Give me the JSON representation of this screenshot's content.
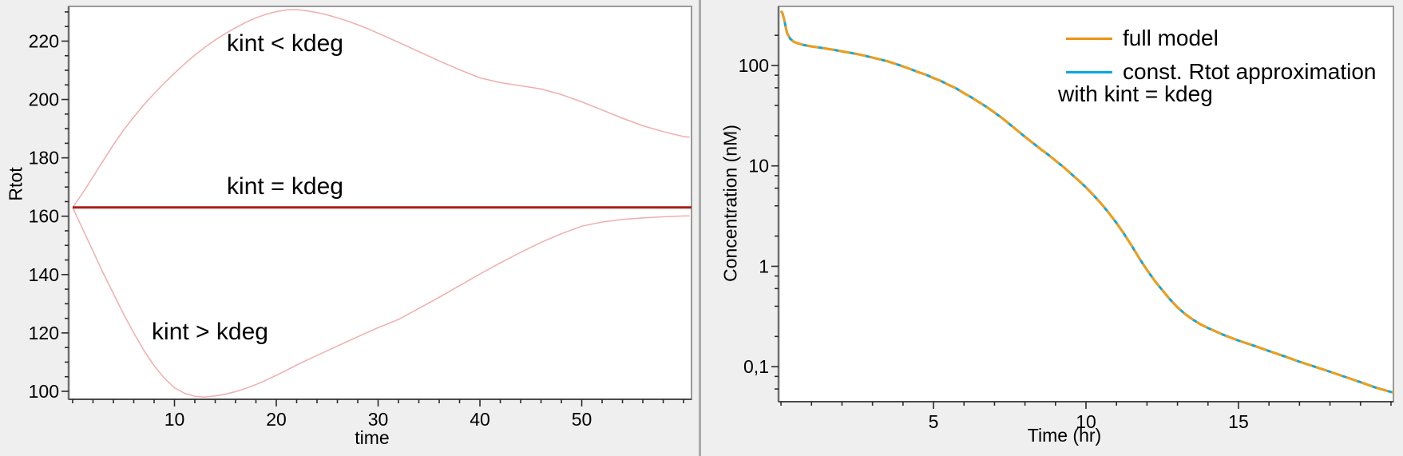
{
  "chart_data": [
    {
      "type": "line",
      "title": "",
      "xlabel": "time",
      "ylabel": "Rtot",
      "xlim": [
        -0.39,
        60.78
      ],
      "ylim": [
        97.26,
        231.9
      ],
      "ylog": false,
      "grid": false,
      "x_major_ticks": [
        10,
        20,
        30,
        40,
        50
      ],
      "x_minor_step": 2,
      "y_major_ticks": [
        {
          "v": 100,
          "label": "100"
        },
        {
          "v": 120,
          "label": "120"
        },
        {
          "v": 140,
          "label": "140"
        },
        {
          "v": 160,
          "label": "160"
        },
        {
          "v": 180,
          "label": "180"
        },
        {
          "v": 200,
          "label": "200"
        },
        {
          "v": 220,
          "label": "220"
        }
      ],
      "y_minor_step": 5,
      "annotations": [
        {
          "text": "kint < kdeg",
          "x": 20.9,
          "y": 218.5
        },
        {
          "text": "kint = kdeg",
          "x": 20.9,
          "y": 169.5
        },
        {
          "text": "kint > kdeg",
          "x": 13.5,
          "y": 120
        }
      ],
      "series": [
        {
          "name": "kint < kdeg",
          "color": "#efaeae",
          "width": 1.5,
          "dash": null,
          "points": [
            [
              0,
              163
            ],
            [
              1,
              168
            ],
            [
              2,
              173.5
            ],
            [
              3,
              179
            ],
            [
              4,
              184.5
            ],
            [
              5,
              189.5
            ],
            [
              6,
              194
            ],
            [
              7,
              198.2
            ],
            [
              8,
              202
            ],
            [
              9,
              205.6
            ],
            [
              10,
              209
            ],
            [
              11,
              212.2
            ],
            [
              12,
              215.2
            ],
            [
              13,
              217.9
            ],
            [
              14,
              220.4
            ],
            [
              15,
              222.6
            ],
            [
              16,
              224.6
            ],
            [
              17,
              226.4
            ],
            [
              18,
              228
            ],
            [
              19,
              229.2
            ],
            [
              20,
              230.1
            ],
            [
              21,
              230.7
            ],
            [
              22,
              230.8
            ],
            [
              23,
              230.4
            ],
            [
              24,
              229.8
            ],
            [
              25,
              229
            ],
            [
              26,
              228
            ],
            [
              27,
              226.9
            ],
            [
              28,
              225.6
            ],
            [
              29,
              224.2
            ],
            [
              30,
              222.7
            ],
            [
              32,
              219.6
            ],
            [
              34,
              216.4
            ],
            [
              36,
              213.2
            ],
            [
              38,
              210.2
            ],
            [
              40,
              207.4
            ],
            [
              42,
              205.8
            ],
            [
              44,
              204.7
            ],
            [
              46,
              203.6
            ],
            [
              48,
              201.7
            ],
            [
              50,
              199.2
            ],
            [
              52,
              196.4
            ],
            [
              54,
              193.6
            ],
            [
              56,
              191
            ],
            [
              58,
              189
            ],
            [
              60,
              187.3
            ],
            [
              60.6,
              187.1
            ]
          ]
        },
        {
          "name": "kint > kdeg",
          "color": "#efaeae",
          "width": 1.5,
          "dash": null,
          "points": [
            [
              0,
              163
            ],
            [
              1,
              155.5
            ],
            [
              2,
              148
            ],
            [
              3,
              140.5
            ],
            [
              4,
              133.5
            ],
            [
              5,
              126.5
            ],
            [
              6,
              120
            ],
            [
              7,
              114
            ],
            [
              8,
              108.8
            ],
            [
              9,
              104.5
            ],
            [
              10,
              101.2
            ],
            [
              11,
              99.3
            ],
            [
              12,
              98.3
            ],
            [
              13,
              98
            ],
            [
              14,
              98.4
            ],
            [
              15,
              99
            ],
            [
              16,
              99.9
            ],
            [
              17,
              101
            ],
            [
              18,
              102.3
            ],
            [
              19,
              103.8
            ],
            [
              20,
              105.5
            ],
            [
              21,
              107.2
            ],
            [
              22,
              109
            ],
            [
              24,
              112.3
            ],
            [
              26,
              115.5
            ],
            [
              28,
              118.7
            ],
            [
              30,
              121.8
            ],
            [
              32,
              124.6
            ],
            [
              34,
              128.4
            ],
            [
              36,
              132.2
            ],
            [
              38,
              136.2
            ],
            [
              40,
              140.2
            ],
            [
              42,
              144
            ],
            [
              44,
              147.6
            ],
            [
              46,
              151
            ],
            [
              48,
              154
            ],
            [
              50,
              156.6
            ],
            [
              52,
              158
            ],
            [
              54,
              158.9
            ],
            [
              56,
              159.4
            ],
            [
              58,
              159.8
            ],
            [
              60,
              160.1
            ],
            [
              60.6,
              160.1
            ]
          ]
        },
        {
          "name": "kint = kdeg",
          "color": "#a82019",
          "width": 3,
          "dash": null,
          "points": [
            [
              0,
              163
            ],
            [
              60.78,
              163
            ]
          ]
        }
      ]
    },
    {
      "type": "line",
      "title": "",
      "xlabel": "Time (hr)",
      "ylabel": "Concentration (nM)",
      "xlim": [
        -0.08,
        20.08
      ],
      "ylim": [
        0.0448,
        388
      ],
      "ylog": true,
      "grid": false,
      "x_major_ticks": [
        5,
        10,
        15
      ],
      "x_minor_step": 1,
      "y_major_ticks": [
        {
          "v": 100,
          "label": "100"
        },
        {
          "v": 10,
          "label": "10"
        },
        {
          "v": 1,
          "label": "1"
        },
        {
          "v": 0.1,
          "label": "0,1"
        }
      ],
      "y_minor_ticks": [
        200,
        80,
        60,
        40,
        20,
        8,
        6,
        4,
        2,
        0.8,
        0.6,
        0.4,
        0.2,
        0.08,
        0.06
      ],
      "legend": {
        "items": [
          {
            "label": "full model",
            "color": "#ee9310"
          },
          {
            "label": "const. Rtot approximation",
            "color": "#09a8e2"
          }
        ],
        "note": "with kint = kdeg"
      },
      "shared_points": [
        [
          0,
          350
        ],
        [
          0.05,
          330
        ],
        [
          0.1,
          290
        ],
        [
          0.15,
          245
        ],
        [
          0.2,
          210
        ],
        [
          0.3,
          185
        ],
        [
          0.4,
          174
        ],
        [
          0.5,
          168
        ],
        [
          0.75,
          160
        ],
        [
          1,
          155
        ],
        [
          1.25,
          151
        ],
        [
          1.5,
          147
        ],
        [
          1.75,
          143
        ],
        [
          2,
          138
        ],
        [
          2.25,
          134
        ],
        [
          2.5,
          130
        ],
        [
          2.75,
          125
        ],
        [
          3,
          120
        ],
        [
          3.25,
          115
        ],
        [
          3.5,
          110
        ],
        [
          3.75,
          104
        ],
        [
          4,
          98
        ],
        [
          4.25,
          92
        ],
        [
          4.5,
          86
        ],
        [
          4.75,
          81
        ],
        [
          5,
          75
        ],
        [
          5.25,
          70
        ],
        [
          5.5,
          64
        ],
        [
          5.75,
          59
        ],
        [
          6,
          53
        ],
        [
          6.25,
          48
        ],
        [
          6.5,
          43
        ],
        [
          6.75,
          38.5
        ],
        [
          7,
          34
        ],
        [
          7.25,
          30
        ],
        [
          7.5,
          26
        ],
        [
          7.75,
          22.5
        ],
        [
          8,
          19.5
        ],
        [
          8.25,
          17
        ],
        [
          8.5,
          14.8
        ],
        [
          8.75,
          13
        ],
        [
          9,
          11.3
        ],
        [
          9.25,
          9.8
        ],
        [
          9.5,
          8.4
        ],
        [
          9.75,
          7.2
        ],
        [
          10,
          6.1
        ],
        [
          10.25,
          5.1
        ],
        [
          10.5,
          4.2
        ],
        [
          10.75,
          3.4
        ],
        [
          11,
          2.7
        ],
        [
          11.25,
          2.1
        ],
        [
          11.5,
          1.6
        ],
        [
          11.75,
          1.2
        ],
        [
          12,
          0.92
        ],
        [
          12.25,
          0.72
        ],
        [
          12.5,
          0.58
        ],
        [
          12.75,
          0.47
        ],
        [
          13,
          0.39
        ],
        [
          13.25,
          0.335
        ],
        [
          13.5,
          0.295
        ],
        [
          13.75,
          0.265
        ],
        [
          14,
          0.243
        ],
        [
          14.5,
          0.208
        ],
        [
          15,
          0.182
        ],
        [
          15.5,
          0.162
        ],
        [
          16,
          0.143
        ],
        [
          16.5,
          0.127
        ],
        [
          17,
          0.112
        ],
        [
          17.5,
          0.1
        ],
        [
          18,
          0.089
        ],
        [
          18.5,
          0.079
        ],
        [
          19,
          0.07
        ],
        [
          19.5,
          0.062
        ],
        [
          20,
          0.056
        ],
        [
          20.1,
          0.055
        ]
      ],
      "series": [
        {
          "name": "const. Rtot approximation",
          "color": "#09a8e2",
          "width": 3,
          "dash": null,
          "points": "shared"
        },
        {
          "name": "full model",
          "color": "#f09d18",
          "width": 3,
          "dash": "15 5",
          "points": "shared"
        }
      ]
    }
  ]
}
